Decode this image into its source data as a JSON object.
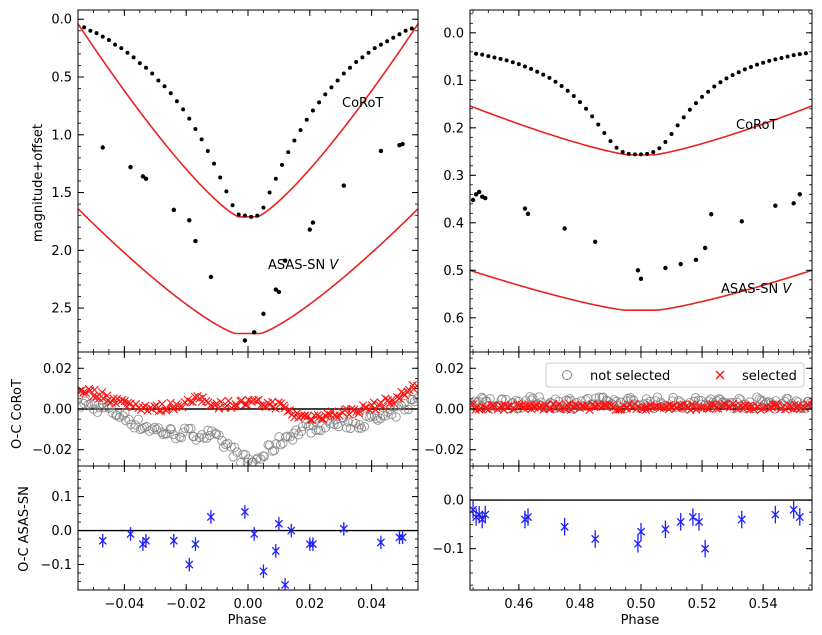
{
  "figure": {
    "left_panel": {
      "top_ylabel": "magnitude+offset",
      "mid_ylabel": "O-C CoRoT",
      "bottom_ylabel": "O-C ASAS-SN",
      "xlabel": "Phase",
      "label_corot": "CoRoT",
      "label_asas": "ASAS-SN ",
      "label_asas_band": "V"
    },
    "right_panel": {
      "xlabel": "Phase",
      "label_corot": "CoRoT",
      "label_asas": "ASAS-SN ",
      "label_asas_band": "V"
    },
    "legend": {
      "not_selected": "not selected",
      "selected": "selected"
    }
  },
  "colors": {
    "model": "#e8231f",
    "selected": "#ff1010",
    "not_selected": "#808080",
    "asas_oc": "#1f1fff",
    "points": "#000000"
  },
  "chart_data": [
    {
      "id": "left-top",
      "type": "line+scatter",
      "ylabel": "magnitude+offset",
      "xlim": [
        -0.055,
        0.055
      ],
      "ylim": [
        2.88,
        -0.08
      ],
      "y_inverted": true,
      "xticks": [
        -0.04,
        -0.02,
        0.0,
        0.02,
        0.04
      ],
      "yticks": [
        0.0,
        0.5,
        1.0,
        1.5,
        2.0,
        2.5
      ],
      "yticklabels": [
        "0.0",
        "0.5",
        "1.0",
        "1.5",
        "2.0",
        "2.5"
      ],
      "corot_points": [
        [
          -0.053,
          0.07
        ],
        [
          -0.051,
          0.1
        ],
        [
          -0.049,
          0.12
        ],
        [
          -0.047,
          0.15
        ],
        [
          -0.045,
          0.18
        ],
        [
          -0.043,
          0.22
        ],
        [
          -0.041,
          0.25
        ],
        [
          -0.039,
          0.29
        ],
        [
          -0.037,
          0.33
        ],
        [
          -0.035,
          0.38
        ],
        [
          -0.033,
          0.42
        ],
        [
          -0.031,
          0.47
        ],
        [
          -0.029,
          0.53
        ],
        [
          -0.027,
          0.58
        ],
        [
          -0.025,
          0.64
        ],
        [
          -0.023,
          0.71
        ],
        [
          -0.021,
          0.78
        ],
        [
          -0.019,
          0.86
        ],
        [
          -0.017,
          0.95
        ],
        [
          -0.015,
          1.04
        ],
        [
          -0.013,
          1.14
        ],
        [
          -0.011,
          1.25
        ],
        [
          -0.009,
          1.37
        ],
        [
          -0.007,
          1.49
        ],
        [
          -0.005,
          1.61
        ],
        [
          -0.003,
          1.69
        ],
        [
          -0.001,
          1.7
        ],
        [
          0.001,
          1.71
        ],
        [
          0.003,
          1.7
        ],
        [
          0.005,
          1.63
        ],
        [
          0.007,
          1.5
        ],
        [
          0.009,
          1.38
        ],
        [
          0.011,
          1.26
        ],
        [
          0.013,
          1.15
        ],
        [
          0.015,
          1.05
        ],
        [
          0.017,
          0.96
        ],
        [
          0.019,
          0.87
        ],
        [
          0.021,
          0.79
        ],
        [
          0.023,
          0.72
        ],
        [
          0.025,
          0.65
        ],
        [
          0.027,
          0.59
        ],
        [
          0.029,
          0.53
        ],
        [
          0.031,
          0.47
        ],
        [
          0.033,
          0.42
        ],
        [
          0.035,
          0.37
        ],
        [
          0.037,
          0.33
        ],
        [
          0.039,
          0.29
        ],
        [
          0.041,
          0.25
        ],
        [
          0.043,
          0.22
        ],
        [
          0.045,
          0.19
        ],
        [
          0.047,
          0.16
        ],
        [
          0.049,
          0.13
        ],
        [
          0.051,
          0.1
        ],
        [
          0.053,
          0.08
        ]
      ],
      "asas_points": [
        [
          -0.047,
          1.11
        ],
        [
          -0.038,
          1.28
        ],
        [
          -0.034,
          1.36
        ],
        [
          -0.033,
          1.38
        ],
        [
          -0.024,
          1.65
        ],
        [
          -0.019,
          1.74
        ],
        [
          -0.017,
          1.92
        ],
        [
          -0.012,
          2.23
        ],
        [
          -0.001,
          2.78
        ],
        [
          0.002,
          2.71
        ],
        [
          0.005,
          2.55
        ],
        [
          0.009,
          2.34
        ],
        [
          0.01,
          2.36
        ],
        [
          0.012,
          2.09
        ],
        [
          0.02,
          1.82
        ],
        [
          0.021,
          1.76
        ],
        [
          0.031,
          1.44
        ],
        [
          0.043,
          1.14
        ],
        [
          0.049,
          1.09
        ],
        [
          0.05,
          1.08
        ]
      ],
      "corot_model": "eclipse: base 0.0, depth 1.71, half-width 0.055, flat-bottom 0.003",
      "asas_model": "eclipse: base 1.0, depth 1.72, half-width 0.075, flat-bottom 0.004",
      "labels": [
        "CoRoT",
        "ASAS-SN V"
      ]
    },
    {
      "id": "right-top",
      "type": "line+scatter",
      "xlim": [
        0.444,
        0.556
      ],
      "ylim": [
        0.672,
        -0.048
      ],
      "y_inverted": true,
      "xticks": [
        0.46,
        0.48,
        0.5,
        0.52,
        0.54
      ],
      "yticks": [
        0.0,
        0.1,
        0.2,
        0.3,
        0.4,
        0.5,
        0.6
      ],
      "yticklabels": [
        "0.0",
        "0.1",
        "0.2",
        "0.3",
        "0.4",
        "0.5",
        "0.6"
      ],
      "corot_points": [
        [
          0.446,
          0.044
        ],
        [
          0.448,
          0.046
        ],
        [
          0.45,
          0.049
        ],
        [
          0.452,
          0.052
        ],
        [
          0.454,
          0.055
        ],
        [
          0.456,
          0.058
        ],
        [
          0.458,
          0.062
        ],
        [
          0.46,
          0.066
        ],
        [
          0.462,
          0.071
        ],
        [
          0.464,
          0.076
        ],
        [
          0.466,
          0.082
        ],
        [
          0.468,
          0.088
        ],
        [
          0.47,
          0.095
        ],
        [
          0.472,
          0.103
        ],
        [
          0.474,
          0.112
        ],
        [
          0.476,
          0.122
        ],
        [
          0.478,
          0.133
        ],
        [
          0.48,
          0.146
        ],
        [
          0.482,
          0.16
        ],
        [
          0.484,
          0.176
        ],
        [
          0.486,
          0.193
        ],
        [
          0.488,
          0.211
        ],
        [
          0.49,
          0.228
        ],
        [
          0.492,
          0.242
        ],
        [
          0.494,
          0.251
        ],
        [
          0.496,
          0.255
        ],
        [
          0.498,
          0.256
        ],
        [
          0.5,
          0.256
        ],
        [
          0.502,
          0.255
        ],
        [
          0.504,
          0.251
        ],
        [
          0.506,
          0.243
        ],
        [
          0.508,
          0.23
        ],
        [
          0.51,
          0.213
        ],
        [
          0.512,
          0.195
        ],
        [
          0.514,
          0.178
        ],
        [
          0.516,
          0.162
        ],
        [
          0.518,
          0.148
        ],
        [
          0.52,
          0.135
        ],
        [
          0.522,
          0.124
        ],
        [
          0.524,
          0.113
        ],
        [
          0.526,
          0.104
        ],
        [
          0.528,
          0.096
        ],
        [
          0.53,
          0.089
        ],
        [
          0.532,
          0.083
        ],
        [
          0.534,
          0.077
        ],
        [
          0.536,
          0.072
        ],
        [
          0.538,
          0.067
        ],
        [
          0.54,
          0.063
        ],
        [
          0.542,
          0.059
        ],
        [
          0.544,
          0.056
        ],
        [
          0.546,
          0.053
        ],
        [
          0.548,
          0.05
        ],
        [
          0.55,
          0.047
        ],
        [
          0.552,
          0.045
        ],
        [
          0.554,
          0.043
        ]
      ],
      "asas_points": [
        [
          0.445,
          0.352
        ],
        [
          0.446,
          0.34
        ],
        [
          0.447,
          0.335
        ],
        [
          0.448,
          0.345
        ],
        [
          0.449,
          0.348
        ],
        [
          0.462,
          0.37
        ],
        [
          0.463,
          0.381
        ],
        [
          0.475,
          0.412
        ],
        [
          0.485,
          0.44
        ],
        [
          0.499,
          0.5
        ],
        [
          0.5,
          0.518
        ],
        [
          0.508,
          0.495
        ],
        [
          0.513,
          0.487
        ],
        [
          0.518,
          0.478
        ],
        [
          0.521,
          0.453
        ],
        [
          0.523,
          0.382
        ],
        [
          0.533,
          0.397
        ],
        [
          0.544,
          0.364
        ],
        [
          0.55,
          0.359
        ],
        [
          0.552,
          0.34
        ]
      ],
      "corot_model": "eclipse: base 0.0, depth 0.257, center 0.5, half-width 0.11, flat-bottom 0.004",
      "asas_model": "eclipse: base 0.352, depth 0.232, center 0.5, half-width 0.118, flat-bottom 0.005",
      "labels": [
        "CoRoT",
        "ASAS-SN V"
      ]
    },
    {
      "id": "left-mid",
      "type": "scatter",
      "ylabel": "O-C CoRoT",
      "xlim": [
        -0.055,
        0.055
      ],
      "ylim": [
        -0.028,
        0.028
      ],
      "yticks": [
        -0.02,
        0.0,
        0.02
      ],
      "yticklabels": [
        "−0.02",
        "0.00",
        "0.02"
      ],
      "zero_line": 0.0,
      "selected_profile": [
        [
          -0.055,
          0.01
        ],
        [
          -0.048,
          0.007
        ],
        [
          -0.04,
          0.003
        ],
        [
          -0.03,
          0.0
        ],
        [
          -0.02,
          0.003
        ],
        [
          -0.015,
          0.005
        ],
        [
          -0.01,
          0.002
        ],
        [
          0.0,
          0.003
        ],
        [
          0.01,
          0.002
        ],
        [
          0.015,
          -0.003
        ],
        [
          0.02,
          -0.004
        ],
        [
          0.03,
          -0.002
        ],
        [
          0.04,
          0.001
        ],
        [
          0.048,
          0.005
        ],
        [
          0.055,
          0.012
        ]
      ],
      "not_selected_profile": [
        [
          -0.055,
          0.003
        ],
        [
          -0.045,
          0.0
        ],
        [
          -0.035,
          -0.008
        ],
        [
          -0.025,
          -0.012
        ],
        [
          -0.018,
          -0.012
        ],
        [
          -0.012,
          -0.013
        ],
        [
          -0.007,
          -0.018
        ],
        [
          -0.003,
          -0.023
        ],
        [
          0.0,
          -0.026
        ],
        [
          0.003,
          -0.025
        ],
        [
          0.007,
          -0.02
        ],
        [
          0.012,
          -0.014
        ],
        [
          0.018,
          -0.01
        ],
        [
          0.025,
          -0.007
        ],
        [
          0.035,
          -0.007
        ],
        [
          0.045,
          -0.004
        ],
        [
          0.055,
          0.005
        ]
      ],
      "series_names": [
        "not selected",
        "selected"
      ]
    },
    {
      "id": "right-mid",
      "type": "scatter",
      "xlim": [
        0.444,
        0.556
      ],
      "ylim": [
        -0.028,
        0.028
      ],
      "yticks": [
        -0.02,
        0.0,
        0.02
      ],
      "yticklabels": [
        "−0.02",
        "0.00",
        "0.02"
      ],
      "zero_line": 0.0,
      "selected_profile": [
        [
          0.444,
          0.001
        ],
        [
          0.556,
          0.001
        ]
      ],
      "not_selected_profile": [
        [
          0.444,
          0.003
        ],
        [
          0.556,
          0.003
        ]
      ],
      "series_names": [
        "not selected",
        "selected"
      ],
      "legend": [
        "not selected",
        "selected"
      ]
    },
    {
      "id": "left-bottom",
      "type": "errorbar",
      "ylabel": "O-C ASAS-SN",
      "xlabel": "Phase",
      "xlim": [
        -0.055,
        0.055
      ],
      "ylim": [
        -0.175,
        0.19
      ],
      "xticks": [
        -0.04,
        -0.02,
        0.0,
        0.02,
        0.04
      ],
      "xticklabels": [
        "−0.04",
        "−0.02",
        "0.00",
        "0.02",
        "0.04"
      ],
      "yticks": [
        -0.1,
        0.0,
        0.1
      ],
      "yticklabels": [
        "−0.1",
        "0.0",
        "0.1"
      ],
      "zero_line": 0.0,
      "yerr": 0.02,
      "points": [
        [
          -0.047,
          -0.03
        ],
        [
          -0.038,
          -0.01
        ],
        [
          -0.034,
          -0.04
        ],
        [
          -0.033,
          -0.03
        ],
        [
          -0.024,
          -0.03
        ],
        [
          -0.019,
          -0.1
        ],
        [
          -0.017,
          -0.04
        ],
        [
          -0.012,
          0.04
        ],
        [
          -0.001,
          0.055
        ],
        [
          0.002,
          -0.01
        ],
        [
          0.005,
          -0.12
        ],
        [
          0.009,
          -0.06
        ],
        [
          0.01,
          0.02
        ],
        [
          0.012,
          -0.16
        ],
        [
          0.014,
          0.0
        ],
        [
          0.02,
          -0.04
        ],
        [
          0.021,
          -0.04
        ],
        [
          0.031,
          0.005
        ],
        [
          0.043,
          -0.035
        ],
        [
          0.049,
          -0.02
        ],
        [
          0.05,
          -0.02
        ]
      ]
    },
    {
      "id": "right-bottom",
      "type": "errorbar",
      "xlabel": "Phase",
      "xlim": [
        0.444,
        0.556
      ],
      "ylim": [
        -0.185,
        0.07
      ],
      "xticks": [
        0.46,
        0.48,
        0.5,
        0.52,
        0.54
      ],
      "xticklabels": [
        "0.46",
        "0.48",
        "0.50",
        "0.52",
        "0.54"
      ],
      "yticks": [
        -0.1,
        0.0
      ],
      "yticklabels": [
        "−0.1",
        "0.0"
      ],
      "zero_line": 0.0,
      "yerr": 0.018,
      "points": [
        [
          0.445,
          -0.02
        ],
        [
          0.446,
          -0.035
        ],
        [
          0.447,
          -0.03
        ],
        [
          0.448,
          -0.04
        ],
        [
          0.449,
          -0.03
        ],
        [
          0.462,
          -0.04
        ],
        [
          0.463,
          -0.035
        ],
        [
          0.475,
          -0.055
        ],
        [
          0.485,
          -0.08
        ],
        [
          0.499,
          -0.09
        ],
        [
          0.5,
          -0.065
        ],
        [
          0.508,
          -0.06
        ],
        [
          0.513,
          -0.045
        ],
        [
          0.517,
          -0.035
        ],
        [
          0.519,
          -0.045
        ],
        [
          0.521,
          -0.1
        ],
        [
          0.533,
          -0.04
        ],
        [
          0.544,
          -0.03
        ],
        [
          0.55,
          -0.02
        ],
        [
          0.552,
          -0.035
        ]
      ]
    }
  ]
}
